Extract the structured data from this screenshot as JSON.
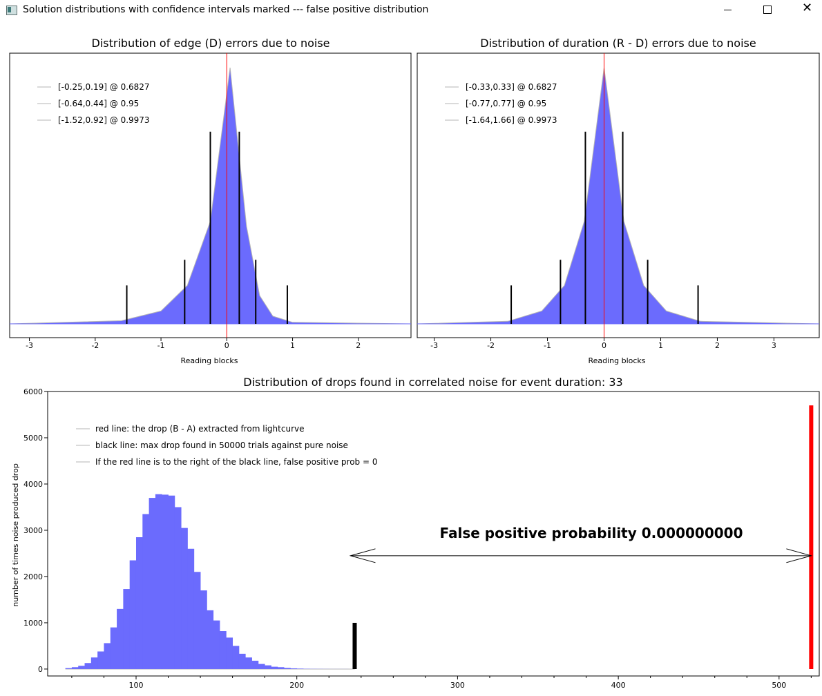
{
  "window": {
    "title": "Solution distributions with confidence intervals marked --- false positive distribution",
    "icons": [
      "app-icon",
      "minimize-icon",
      "maximize-icon",
      "close-icon"
    ]
  },
  "chart_data": [
    {
      "type": "histogram",
      "title": "Distribution of edge (D) errors due to noise",
      "xlabel": "Reading blocks",
      "ylabel": "",
      "xlim": [
        -3.3,
        2.8
      ],
      "xticks": [
        -3,
        -2,
        -1,
        0,
        1,
        2
      ],
      "series": [
        {
          "values": [
            0,
            0.012,
            0.05,
            0.15,
            0.4,
            1.0,
            0.38,
            0.11,
            0.03,
            0.006,
            0
          ],
          "x": [
            -3.3,
            -1.6,
            -1.0,
            -0.6,
            -0.25,
            0.05,
            0.3,
            0.5,
            0.7,
            1.0,
            2.8
          ]
        }
      ],
      "marker_line": {
        "x": 0,
        "color": "#ff0000"
      },
      "intervals": [
        {
          "label": "[-0.25,0.19] @ 0.6827",
          "lo": -0.25,
          "hi": 0.19
        },
        {
          "label": "[-0.64,0.44] @ 0.95",
          "lo": -0.64,
          "hi": 0.44
        },
        {
          "label": "[-1.52,0.92] @ 0.9973",
          "lo": -1.52,
          "hi": 0.92
        }
      ]
    },
    {
      "type": "histogram",
      "title": "Distribution of duration (R - D) errors due to noise",
      "xlabel": "Reading blocks",
      "ylabel": "",
      "xlim": [
        -3.3,
        3.8
      ],
      "xticks": [
        -3,
        -2,
        -1,
        0,
        1,
        2,
        3
      ],
      "series": [
        {
          "values": [
            0,
            0.01,
            0.05,
            0.15,
            0.4,
            1.0,
            0.4,
            0.15,
            0.05,
            0.01,
            0
          ],
          "x": [
            -3.3,
            -1.7,
            -1.1,
            -0.7,
            -0.35,
            0,
            0.35,
            0.7,
            1.1,
            1.7,
            3.8
          ]
        }
      ],
      "marker_line": {
        "x": 0,
        "color": "#ff0000"
      },
      "intervals": [
        {
          "label": "[-0.33,0.33] @ 0.6827",
          "lo": -0.33,
          "hi": 0.33
        },
        {
          "label": "[-0.77,0.77] @ 0.95",
          "lo": -0.77,
          "hi": 0.77
        },
        {
          "label": "[-1.64,1.66] @ 0.9973",
          "lo": -1.64,
          "hi": 1.66
        }
      ]
    },
    {
      "type": "histogram",
      "title": "Distribution of drops found in correlated noise for event duration: 33",
      "xlabel": "",
      "ylabel": "number of times noise produced drop",
      "xlim": [
        45,
        525
      ],
      "ylim": [
        -150,
        6000
      ],
      "xticks": [
        100,
        200,
        300,
        400,
        500
      ],
      "yticks": [
        0,
        1000,
        2000,
        3000,
        4000,
        5000,
        6000
      ],
      "bin_width": 4,
      "bins": [
        {
          "x": 58,
          "y": 20
        },
        {
          "x": 62,
          "y": 40
        },
        {
          "x": 66,
          "y": 70
        },
        {
          "x": 70,
          "y": 130
        },
        {
          "x": 74,
          "y": 250
        },
        {
          "x": 78,
          "y": 380
        },
        {
          "x": 82,
          "y": 560
        },
        {
          "x": 86,
          "y": 900
        },
        {
          "x": 90,
          "y": 1300
        },
        {
          "x": 94,
          "y": 1730
        },
        {
          "x": 98,
          "y": 2350
        },
        {
          "x": 102,
          "y": 2850
        },
        {
          "x": 106,
          "y": 3350
        },
        {
          "x": 110,
          "y": 3700
        },
        {
          "x": 114,
          "y": 3780
        },
        {
          "x": 118,
          "y": 3770
        },
        {
          "x": 122,
          "y": 3750
        },
        {
          "x": 126,
          "y": 3500
        },
        {
          "x": 130,
          "y": 3050
        },
        {
          "x": 134,
          "y": 2600
        },
        {
          "x": 138,
          "y": 2100
        },
        {
          "x": 142,
          "y": 1700
        },
        {
          "x": 146,
          "y": 1270
        },
        {
          "x": 150,
          "y": 1050
        },
        {
          "x": 154,
          "y": 820
        },
        {
          "x": 158,
          "y": 680
        },
        {
          "x": 162,
          "y": 500
        },
        {
          "x": 166,
          "y": 330
        },
        {
          "x": 170,
          "y": 250
        },
        {
          "x": 174,
          "y": 180
        },
        {
          "x": 178,
          "y": 110
        },
        {
          "x": 182,
          "y": 80
        },
        {
          "x": 186,
          "y": 50
        },
        {
          "x": 190,
          "y": 40
        },
        {
          "x": 194,
          "y": 25
        },
        {
          "x": 198,
          "y": 15
        },
        {
          "x": 202,
          "y": 10
        },
        {
          "x": 206,
          "y": 6
        },
        {
          "x": 210,
          "y": 4
        },
        {
          "x": 214,
          "y": 3
        },
        {
          "x": 218,
          "y": 2
        },
        {
          "x": 222,
          "y": 1
        },
        {
          "x": 226,
          "y": 1
        },
        {
          "x": 230,
          "y": 1
        }
      ],
      "black_line": {
        "x": 236,
        "y_top": 1000,
        "color": "#000000"
      },
      "red_line": {
        "x": 520,
        "y_top": 5700,
        "color": "#ff0000"
      },
      "legend": [
        "red line: the drop (B - A) extracted from lightcurve",
        "black line: max drop found in 50000 trials against pure noise",
        "If the red line is to the right of the black line, false positive prob = 0"
      ],
      "annotation": "False positive probability 0.000000000",
      "arrow_y": 2450
    }
  ],
  "colors": {
    "fill": "#6b6bfd",
    "red": "#ff0000",
    "grey": "#b4b4b4"
  }
}
